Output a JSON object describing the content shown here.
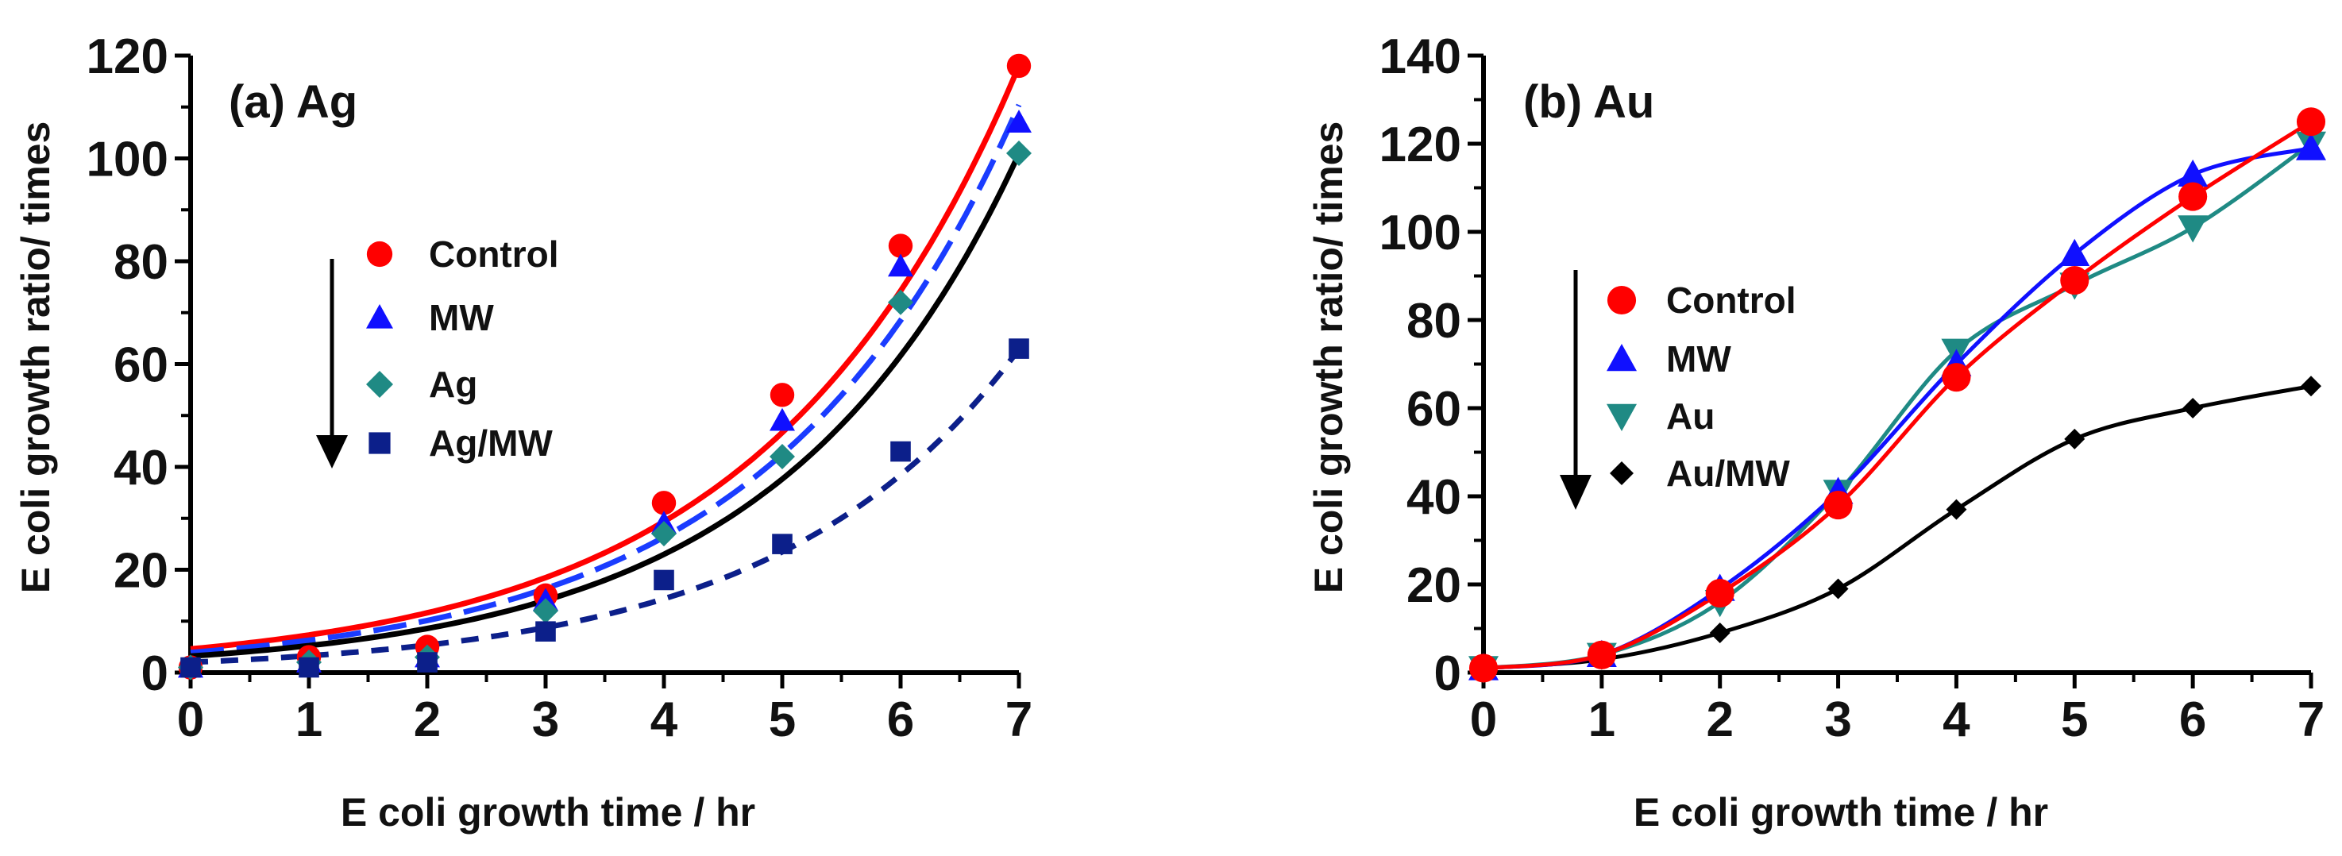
{
  "chart_data": [
    {
      "type": "scatter",
      "title": "(a) Ag",
      "xlabel": "E coli growth time / hr",
      "ylabel": "E coli growth ratio/ times",
      "xlim": [
        0,
        7
      ],
      "ylim": [
        0,
        120
      ],
      "xticks": [
        "0",
        "1",
        "2",
        "3",
        "4",
        "5",
        "6",
        "7"
      ],
      "yticks": [
        "0",
        "20",
        "40",
        "60",
        "80",
        "100",
        "120"
      ],
      "legend_position": "left",
      "x": [
        0,
        1,
        2,
        3,
        4,
        5,
        6,
        7
      ],
      "series": [
        {
          "name": "Control",
          "marker": "circle",
          "color": "#ff0000",
          "values": [
            1,
            3,
            5,
            15,
            33,
            54,
            83,
            118
          ],
          "fit": {
            "style": "solid",
            "color": "#ff0000",
            "a": 4.6,
            "b": 0.4635
          }
        },
        {
          "name": "MW",
          "marker": "triangle-up",
          "color": "#1010ff",
          "values": [
            1,
            2,
            3,
            14,
            29,
            49,
            79,
            107
          ],
          "fit": {
            "style": "long-dash",
            "color": "#1a3cff",
            "a": 3.9,
            "b": 0.4776
          }
        },
        {
          "name": "Ag",
          "marker": "diamond",
          "color": "#1f8a84",
          "values": [
            1,
            2,
            3,
            12,
            27,
            42,
            72,
            101
          ],
          "fit": {
            "style": "solid",
            "color": "#000000",
            "a": 3.2,
            "b": 0.493
          }
        },
        {
          "name": "Ag/MW",
          "marker": "square",
          "color": "#0c1f8a",
          "values": [
            1,
            1,
            2,
            8,
            18,
            25,
            43,
            63
          ],
          "fit": {
            "style": "short-dash",
            "color": "#0c1f8a",
            "a": 2.0,
            "b": 0.4926
          }
        }
      ]
    },
    {
      "type": "line",
      "title": "(b) Au",
      "xlabel": "E coli growth time / hr",
      "ylabel": "E coli growth ratio/ times",
      "xlim": [
        0,
        7
      ],
      "ylim": [
        0,
        140
      ],
      "xticks": [
        "0",
        "1",
        "2",
        "3",
        "4",
        "5",
        "6",
        "7"
      ],
      "yticks": [
        "0",
        "20",
        "40",
        "60",
        "80",
        "100",
        "120",
        "140"
      ],
      "legend_position": "left",
      "x": [
        0,
        1,
        2,
        3,
        4,
        5,
        6,
        7
      ],
      "series": [
        {
          "name": "Control",
          "marker": "circle",
          "color": "#ff0000",
          "values": [
            1,
            4,
            18,
            38,
            67,
            89,
            108,
            125
          ]
        },
        {
          "name": "MW",
          "marker": "triangle-up",
          "color": "#1010ff",
          "values": [
            1,
            4,
            19,
            41,
            70,
            95,
            113,
            119
          ]
        },
        {
          "name": "Au",
          "marker": "triangle-down",
          "color": "#1f8a84",
          "values": [
            1,
            4,
            16,
            41,
            73,
            88,
            101,
            120
          ]
        },
        {
          "name": "Au/MW",
          "marker": "diamond",
          "color": "#000000",
          "values": [
            1,
            3,
            9,
            19,
            37,
            53,
            60,
            65
          ]
        }
      ]
    }
  ]
}
